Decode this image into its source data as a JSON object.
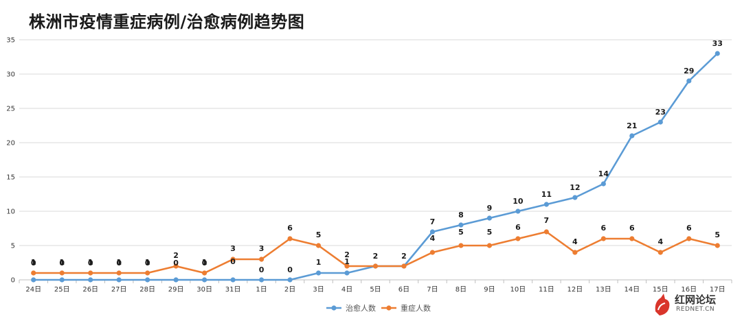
{
  "chart_data": {
    "type": "line",
    "title": "株洲市疫情重症病例/治愈病例趋势图",
    "categories": [
      "24日",
      "25日",
      "26日",
      "27日",
      "28日",
      "29日",
      "30日",
      "31日",
      "1日",
      "2日",
      "3日",
      "4日",
      "5日",
      "6日",
      "7日",
      "8日",
      "9日",
      "10日",
      "11日",
      "12日",
      "13日",
      "14日",
      "15日",
      "16日",
      "17日"
    ],
    "series": [
      {
        "name": "治愈人数",
        "color": "#5b9bd5",
        "values": [
          0,
          0,
          0,
          0,
          0,
          0,
          0,
          0,
          0,
          0,
          1,
          1,
          2,
          2,
          7,
          8,
          9,
          10,
          11,
          12,
          14,
          21,
          23,
          29,
          33
        ]
      },
      {
        "name": "重症人数",
        "color": "#ed7d31",
        "values": [
          1,
          1,
          1,
          1,
          1,
          2,
          1,
          3,
          3,
          6,
          5,
          2,
          2,
          2,
          4,
          5,
          5,
          6,
          7,
          4,
          6,
          6,
          4,
          6,
          5
        ]
      }
    ],
    "ylim": [
      0,
      35
    ],
    "yticks": [
      0,
      5,
      10,
      15,
      20,
      25,
      30,
      35
    ],
    "grid": true,
    "legend_position": "bottom-center",
    "data_labels": "selective"
  },
  "watermark": {
    "text": "红网论坛",
    "sub": "REDNET.CN"
  }
}
